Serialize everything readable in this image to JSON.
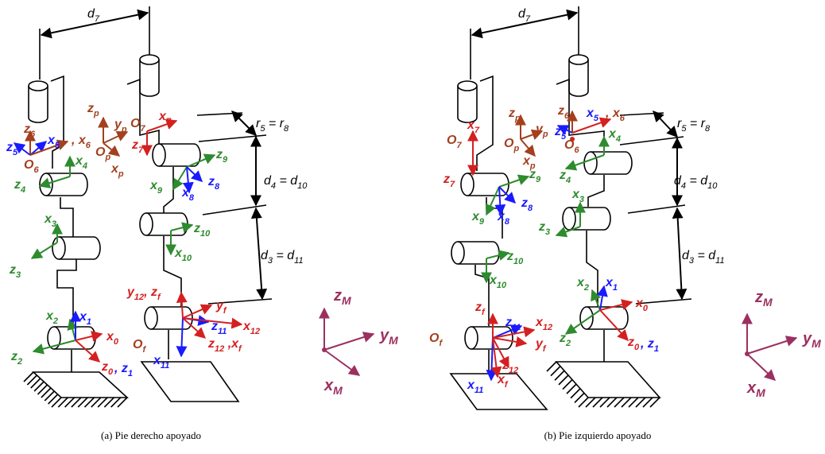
{
  "panels": [
    {
      "caption": "(a) Pie derecho apoyado",
      "labels": [
        {
          "parts": [
            "d",
            "7"
          ],
          "color": "#000000"
        },
        {
          "parts": [
            "r",
            "5",
            " = r",
            "8"
          ],
          "color": "#000000"
        },
        {
          "parts": [
            "d",
            "4",
            " = d",
            "10"
          ],
          "color": "#000000"
        },
        {
          "parts": [
            "d",
            "3",
            " = d",
            "11"
          ],
          "color": "#000000"
        },
        {
          "parts": [
            "z",
            "6"
          ],
          "color": "#a3401e"
        },
        {
          "parts": [
            "x",
            "5"
          ],
          "color": "#1a1aff"
        },
        {
          "parts": [
            ", x",
            "6"
          ],
          "color": "#a3401e"
        },
        {
          "parts": [
            "z",
            "5"
          ],
          "color": "#1a1aff"
        },
        {
          "parts": [
            "O",
            "6"
          ],
          "color": "#a3401e"
        },
        {
          "parts": [
            "z",
            "p"
          ],
          "color": "#a3401e"
        },
        {
          "parts": [
            "y",
            "p"
          ],
          "color": "#a3401e"
        },
        {
          "parts": [
            "O",
            "7"
          ],
          "color": "#a3401e"
        },
        {
          "parts": [
            "O",
            "p"
          ],
          "color": "#a3401e"
        },
        {
          "parts": [
            "x",
            "p"
          ],
          "color": "#a3401e"
        },
        {
          "parts": [
            "x",
            "7"
          ],
          "color": "#d42020"
        },
        {
          "parts": [
            "z",
            "7"
          ],
          "color": "#d42020"
        },
        {
          "parts": [
            "z",
            "9"
          ],
          "color": "#2e8b2e"
        },
        {
          "parts": [
            "x",
            "4"
          ],
          "color": "#2e8b2e"
        },
        {
          "parts": [
            "z",
            "4"
          ],
          "color": "#2e8b2e"
        },
        {
          "parts": [
            "z",
            "8"
          ],
          "color": "#1a1aff"
        },
        {
          "parts": [
            "x",
            "9"
          ],
          "color": "#2e8b2e"
        },
        {
          "parts": [
            "x",
            "8"
          ],
          "color": "#1a1aff"
        },
        {
          "parts": [
            "x",
            "3"
          ],
          "color": "#2e8b2e"
        },
        {
          "parts": [
            "z",
            "10"
          ],
          "color": "#2e8b2e"
        },
        {
          "parts": [
            "z",
            "3"
          ],
          "color": "#2e8b2e"
        },
        {
          "parts": [
            "x",
            "10"
          ],
          "color": "#2e8b2e"
        },
        {
          "parts": [
            "y",
            "12",
            ", z",
            "f"
          ],
          "color": "#d42020"
        },
        {
          "parts": [
            "y",
            "f"
          ],
          "color": "#d42020"
        },
        {
          "parts": [
            "x",
            "2"
          ],
          "color": "#2e8b2e"
        },
        {
          "parts": [
            "x",
            "1"
          ],
          "color": "#1a1aff"
        },
        {
          "parts": [
            "x",
            "0"
          ],
          "color": "#d42020"
        },
        {
          "parts": [
            "z",
            "11"
          ],
          "color": "#1a1aff"
        },
        {
          "parts": [
            "x",
            "12"
          ],
          "color": "#d42020"
        },
        {
          "parts": [
            "O",
            "f"
          ],
          "color": "#a3401e"
        },
        {
          "parts": [
            "z",
            "12",
            " ,x",
            "f"
          ],
          "color": "#d42020"
        },
        {
          "parts": [
            "x",
            "11"
          ],
          "color": "#1a1aff"
        },
        {
          "parts": [
            "z",
            "2"
          ],
          "color": "#2e8b2e"
        },
        {
          "parts": [
            "z",
            "0"
          ],
          "color": "#d42020"
        },
        {
          "parts": [
            ", z",
            "1"
          ],
          "color": "#1a1aff"
        },
        {
          "parts": [
            "z",
            "M"
          ],
          "color": "#9b3060"
        },
        {
          "parts": [
            "y",
            "M"
          ],
          "color": "#9b3060"
        },
        {
          "parts": [
            "x",
            "M"
          ],
          "color": "#9b3060"
        }
      ]
    },
    {
      "caption": "(b) Pie izquierdo apoyado",
      "labels": [
        {
          "parts": [
            "d",
            "7"
          ],
          "color": "#000000"
        },
        {
          "parts": [
            "r",
            "5",
            " = r",
            "8"
          ],
          "color": "#000000"
        },
        {
          "parts": [
            "d",
            "4",
            " = d",
            "10"
          ],
          "color": "#000000"
        },
        {
          "parts": [
            "d",
            "3",
            " = d",
            "11"
          ],
          "color": "#000000"
        },
        {
          "parts": [
            "z",
            "p"
          ],
          "color": "#a3401e"
        },
        {
          "parts": [
            "y",
            "p"
          ],
          "color": "#a3401e"
        },
        {
          "parts": [
            "O",
            "p"
          ],
          "color": "#a3401e"
        },
        {
          "parts": [
            "x",
            "p"
          ],
          "color": "#a3401e"
        },
        {
          "parts": [
            "O",
            "7"
          ],
          "color": "#a3401e"
        },
        {
          "parts": [
            "x",
            "7"
          ],
          "color": "#d42020"
        },
        {
          "parts": [
            "z",
            "7"
          ],
          "color": "#d42020"
        },
        {
          "parts": [
            "z",
            "9"
          ],
          "color": "#2e8b2e"
        },
        {
          "parts": [
            "z",
            "6"
          ],
          "color": "#a3401e"
        },
        {
          "parts": [
            "x",
            "5"
          ],
          "color": "#1a1aff"
        },
        {
          "parts": [
            ", x",
            "6"
          ],
          "color": "#a3401e"
        },
        {
          "parts": [
            "z",
            "5"
          ],
          "color": "#1a1aff"
        },
        {
          "parts": [
            "O",
            "6"
          ],
          "color": "#a3401e"
        },
        {
          "parts": [
            "x",
            "4"
          ],
          "color": "#2e8b2e"
        },
        {
          "parts": [
            "z",
            "4"
          ],
          "color": "#2e8b2e"
        },
        {
          "parts": [
            "x",
            "3"
          ],
          "color": "#2e8b2e"
        },
        {
          "parts": [
            "z",
            "8"
          ],
          "color": "#1a1aff"
        },
        {
          "parts": [
            "x",
            "9"
          ],
          "color": "#2e8b2e"
        },
        {
          "parts": [
            "x",
            "8"
          ],
          "color": "#1a1aff"
        },
        {
          "parts": [
            "z",
            "3"
          ],
          "color": "#2e8b2e"
        },
        {
          "parts": [
            "z",
            "10"
          ],
          "color": "#2e8b2e"
        },
        {
          "parts": [
            "x",
            "10"
          ],
          "color": "#2e8b2e"
        },
        {
          "parts": [
            "x",
            "2"
          ],
          "color": "#2e8b2e"
        },
        {
          "parts": [
            "x",
            "1"
          ],
          "color": "#1a1aff"
        },
        {
          "parts": [
            "x",
            "0"
          ],
          "color": "#d42020"
        },
        {
          "parts": [
            "z",
            "f"
          ],
          "color": "#d42020"
        },
        {
          "parts": [
            "z",
            "11"
          ],
          "color": "#1a1aff"
        },
        {
          "parts": [
            "x",
            "12"
          ],
          "color": "#d42020"
        },
        {
          "parts": [
            "O",
            "f"
          ],
          "color": "#a3401e"
        },
        {
          "parts": [
            "y",
            "f"
          ],
          "color": "#d42020"
        },
        {
          "parts": [
            "z",
            "2"
          ],
          "color": "#2e8b2e"
        },
        {
          "parts": [
            "z",
            "0"
          ],
          "color": "#d42020"
        },
        {
          "parts": [
            ", z",
            "1"
          ],
          "color": "#1a1aff"
        },
        {
          "parts": [
            "z",
            "12"
          ],
          "color": "#d42020"
        },
        {
          "parts": [
            "x",
            "f"
          ],
          "color": "#d42020"
        },
        {
          "parts": [
            "x",
            "11"
          ],
          "color": "#1a1aff"
        },
        {
          "parts": [
            "z",
            "M"
          ],
          "color": "#9b3060"
        },
        {
          "parts": [
            "y",
            "M"
          ],
          "color": "#9b3060"
        },
        {
          "parts": [
            "x",
            "M"
          ],
          "color": "#9b3060"
        }
      ]
    }
  ]
}
